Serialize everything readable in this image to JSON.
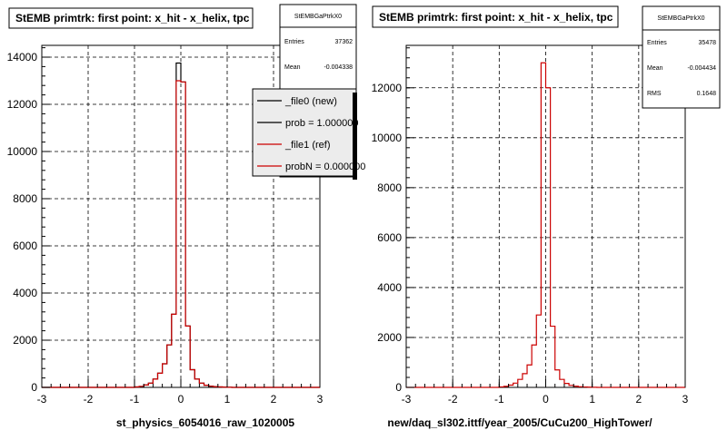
{
  "colors": {
    "new": "#000000",
    "ref": "#cc0000",
    "frame": "#000000",
    "background": "#ffffff"
  },
  "chart_data": [
    {
      "type": "bar",
      "title": "StEMB primtrk: first point: x_hit - x_helix, tpc",
      "xlabel": "st_physics_6054016_raw_1020005",
      "ylabel": "",
      "xlim": [
        -3,
        3
      ],
      "ylim": [
        0,
        14500
      ],
      "xticks": [
        -3,
        -2,
        -1,
        0,
        1,
        2,
        3
      ],
      "yticks": [
        0,
        2000,
        4000,
        6000,
        8000,
        10000,
        12000,
        14000
      ],
      "grid": true,
      "bin_width": 0.1,
      "series": [
        {
          "name": "_file0 (new)",
          "bin_low_edges": [
            -1.0,
            -0.9,
            -0.8,
            -0.7,
            -0.6,
            -0.5,
            -0.4,
            -0.3,
            -0.2,
            -0.1,
            0.0,
            0.1,
            0.2,
            0.3,
            0.4,
            0.5,
            0.6,
            0.7,
            0.8,
            0.9,
            1.0
          ],
          "values": [
            20,
            40,
            100,
            180,
            350,
            600,
            1000,
            1800,
            3100,
            13750,
            12950,
            2600,
            750,
            350,
            180,
            90,
            50,
            30,
            20,
            10,
            5
          ]
        },
        {
          "name": "_file1 (ref)",
          "bin_low_edges": [
            -1.0,
            -0.9,
            -0.8,
            -0.7,
            -0.6,
            -0.5,
            -0.4,
            -0.3,
            -0.2,
            -0.1,
            0.0,
            0.1,
            0.2,
            0.3,
            0.4,
            0.5,
            0.6,
            0.7,
            0.8,
            0.9,
            1.0
          ],
          "values": [
            20,
            40,
            100,
            180,
            350,
            600,
            1000,
            1800,
            3100,
            13000,
            12950,
            2600,
            750,
            350,
            180,
            90,
            50,
            30,
            20,
            10,
            5
          ]
        }
      ],
      "stats": {
        "header": "StEMBGaPtrkX0",
        "rows": [
          {
            "label": "Entries",
            "value": "37362"
          },
          {
            "label": "Mean",
            "value": "-0.004338"
          }
        ]
      },
      "legend": {
        "placement": "top-right",
        "entries": [
          {
            "label": "_file0 (new)",
            "color": "#000000"
          },
          {
            "label": "prob = 1.000000",
            "color": "#000000"
          },
          {
            "label": "_file1 (ref)",
            "color": "#cc0000"
          },
          {
            "label": "probN = 0.000000",
            "color": "#cc0000"
          }
        ]
      }
    },
    {
      "type": "bar",
      "title": "StEMB primtrk: first point: x_hit - x_helix, tpc",
      "xlabel": "new/daq_sl302.ittf/year_2005/CuCu200_HighTower/",
      "ylabel": "",
      "xlim": [
        -3,
        3
      ],
      "ylim": [
        0,
        13700
      ],
      "xticks": [
        -3,
        -2,
        -1,
        0,
        1,
        2,
        3
      ],
      "yticks": [
        0,
        2000,
        4000,
        6000,
        8000,
        10000,
        12000
      ],
      "grid": true,
      "bin_width": 0.1,
      "series": [
        {
          "name": "",
          "bin_low_edges": [
            -1.0,
            -0.9,
            -0.8,
            -0.7,
            -0.6,
            -0.5,
            -0.4,
            -0.3,
            -0.2,
            -0.1,
            0.0,
            0.1,
            0.2,
            0.3,
            0.4,
            0.5,
            0.6,
            0.7,
            0.8,
            0.9,
            1.0
          ],
          "values": [
            20,
            40,
            90,
            170,
            320,
            550,
            900,
            1700,
            2900,
            13000,
            12000,
            2450,
            700,
            320,
            160,
            80,
            45,
            25,
            15,
            10,
            5
          ]
        }
      ],
      "stats": {
        "header": "StEMBGaPtrkX0",
        "rows": [
          {
            "label": "Entries",
            "value": "35478"
          },
          {
            "label": "Mean",
            "value": "-0.004434"
          },
          {
            "label": "RMS",
            "value": "0.1648"
          }
        ]
      }
    }
  ]
}
